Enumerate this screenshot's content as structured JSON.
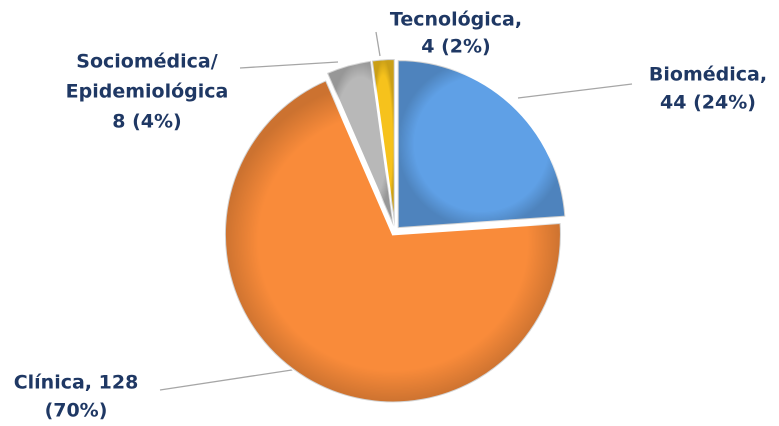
{
  "chart_data": {
    "type": "pie",
    "values": [
      44,
      128,
      8,
      4
    ],
    "value_labels": [
      [
        "Biomédica,",
        "44 (24%)"
      ],
      [
        "Clínica, 128",
        "(70%)"
      ],
      [
        "Sociomédica/",
        "Epidemiológica",
        "8 (4%)"
      ],
      [
        "Tecnológica,",
        "4 (2%)"
      ]
    ],
    "colors": [
      "#5fa0e6",
      "#f98b3a",
      "#b8b8b8",
      "#f6c21c"
    ]
  }
}
